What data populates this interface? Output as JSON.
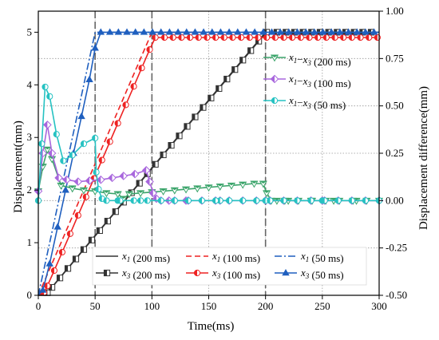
{
  "chart_data": {
    "type": "line",
    "title": "",
    "xlabel": "Time(ms)",
    "ylabel": "Displacement(mm)",
    "y2label": "Displacement difference(mm)",
    "xlim": [
      0,
      300
    ],
    "ylim": [
      0,
      5.4
    ],
    "y2lim": [
      -0.5,
      1.0
    ],
    "xticks": [
      "0",
      "50",
      "100",
      "150",
      "200",
      "250",
      "300"
    ],
    "yticks": [
      "0",
      "1",
      "2",
      "3",
      "4",
      "5"
    ],
    "y2ticks": [
      "-0.50",
      "-0.25",
      "0.00",
      "0.25",
      "0.50",
      "0.75",
      "1.00"
    ],
    "grid": true,
    "vlines_x": [
      50,
      100,
      200
    ],
    "colors": {
      "black": "#333333",
      "red": "#ee2222",
      "blue": "#1f5fbf",
      "green": "#3aa46a",
      "purple": "#a866dd",
      "cyan": "#26c2c2"
    },
    "series": [
      {
        "name": "x1 (200 ms)",
        "axis": "left",
        "color": "#333333",
        "dash": "solid",
        "marker": "none",
        "x": [
          0,
          6,
          200,
          300
        ],
        "y": [
          0,
          0,
          5,
          5
        ]
      },
      {
        "name": "x1 (100 ms)",
        "axis": "left",
        "color": "#ee2222",
        "dash": "dash",
        "marker": "none",
        "x": [
          0,
          0,
          100,
          300
        ],
        "y": [
          0,
          0,
          5,
          5
        ]
      },
      {
        "name": "x1 (50 ms)",
        "axis": "left",
        "color": "#1f5fbf",
        "dash": "dashdot",
        "marker": "none",
        "x": [
          0,
          50,
          300
        ],
        "y": [
          0,
          5,
          5
        ]
      },
      {
        "name": "x3 (200 ms)",
        "axis": "left",
        "color": "#333333",
        "dash": "solid",
        "marker": "square",
        "x": [
          0,
          8,
          12,
          19,
          26,
          33,
          40,
          47,
          54,
          61,
          68,
          75,
          82,
          89,
          96,
          103,
          110,
          117,
          124,
          131,
          138,
          145,
          152,
          159,
          166,
          173,
          180,
          187,
          194,
          201,
          210,
          300
        ],
        "y": [
          0,
          0.05,
          0.15,
          0.33,
          0.51,
          0.69,
          0.87,
          1.05,
          1.23,
          1.41,
          1.59,
          1.77,
          1.95,
          2.13,
          2.31,
          2.49,
          2.67,
          2.85,
          3.03,
          3.21,
          3.39,
          3.57,
          3.75,
          3.93,
          4.11,
          4.29,
          4.47,
          4.65,
          4.83,
          5.0,
          5.0,
          5.0
        ]
      },
      {
        "name": "x3 (100 ms)",
        "axis": "left",
        "color": "#ee2222",
        "dash": "solid",
        "marker": "circle",
        "x": [
          0,
          5,
          8,
          14,
          21,
          28,
          35,
          42,
          49,
          56,
          63,
          70,
          77,
          84,
          91,
          98,
          103,
          300
        ],
        "y": [
          0,
          0.05,
          0.18,
          0.47,
          0.82,
          1.17,
          1.52,
          1.87,
          2.22,
          2.57,
          2.92,
          3.27,
          3.62,
          3.97,
          4.32,
          4.67,
          4.9,
          4.9
        ]
      },
      {
        "name": "x3 (50 ms)",
        "axis": "left",
        "color": "#1f5fbf",
        "dash": "solid",
        "marker": "triangle",
        "x": [
          0,
          4,
          10,
          17,
          24,
          31,
          38,
          45,
          50,
          55,
          300
        ],
        "y": [
          0,
          0.1,
          0.6,
          1.3,
          2.0,
          2.7,
          3.4,
          4.1,
          4.7,
          5.0,
          5.0
        ]
      },
      {
        "name": "x1−x3 (200 ms)",
        "axis": "right",
        "color": "#3aa46a",
        "dash": "solid",
        "marker": "triangle-down",
        "x": [
          0,
          4,
          8,
          12,
          20,
          30,
          40,
          50,
          60,
          70,
          75,
          80,
          90,
          100,
          110,
          120,
          130,
          140,
          150,
          160,
          170,
          180,
          190,
          198,
          201,
          205,
          210,
          220,
          240,
          260,
          280,
          300
        ],
        "y": [
          0.05,
          0.18,
          0.27,
          0.22,
          0.08,
          0.065,
          0.055,
          0.05,
          0.04,
          0.035,
          0.01,
          0.035,
          0.04,
          0.045,
          0.05,
          0.055,
          0.06,
          0.065,
          0.07,
          0.075,
          0.08,
          0.085,
          0.09,
          0.09,
          0.04,
          0.0,
          0.0,
          0.0,
          0.0,
          0.0,
          0.0,
          0.0
        ]
      },
      {
        "name": "x1−x3 (100 ms)",
        "axis": "right",
        "color": "#a866dd",
        "dash": "solid",
        "marker": "diamond",
        "x": [
          0,
          4,
          8,
          12,
          18,
          25,
          35,
          45,
          55,
          65,
          75,
          85,
          95,
          98,
          101,
          104,
          108,
          115,
          130,
          160,
          200,
          250,
          300
        ],
        "y": [
          0.05,
          0.25,
          0.4,
          0.25,
          0.12,
          0.11,
          0.1,
          0.105,
          0.11,
          0.12,
          0.13,
          0.14,
          0.16,
          0.1,
          0.04,
          0.01,
          0.0,
          0.0,
          0.0,
          0.0,
          0.0,
          0.0,
          0.0
        ]
      },
      {
        "name": "x1−x3 (50 ms)",
        "axis": "right",
        "color": "#26c2c2",
        "dash": "solid",
        "marker": "circle-half",
        "x": [
          0,
          3,
          6,
          10,
          16,
          22,
          30,
          40,
          50,
          51,
          53,
          56,
          60,
          70,
          90,
          120,
          160,
          200,
          250,
          300
        ],
        "y": [
          0.0,
          0.3,
          0.6,
          0.55,
          0.35,
          0.21,
          0.24,
          0.3,
          0.33,
          0.15,
          0.06,
          0.01,
          0.0,
          0.0,
          0.0,
          0.0,
          0.0,
          0.0,
          0.0,
          0.0
        ]
      }
    ],
    "legend_bottom": [
      [
        "x1",
        " (200 ms)"
      ],
      [
        "x1",
        " (100 ms)"
      ],
      [
        "x1",
        " (50 ms)"
      ],
      [
        "x3",
        " (200 ms)"
      ],
      [
        "x3",
        " (100 ms)"
      ],
      [
        "x3",
        " (50 ms)"
      ]
    ],
    "legend_right": [
      [
        "x1−x3",
        " (200 ms)"
      ],
      [
        "x1−x3",
        " (100 ms)"
      ],
      [
        "x1−x3",
        " (50 ms)"
      ]
    ]
  }
}
